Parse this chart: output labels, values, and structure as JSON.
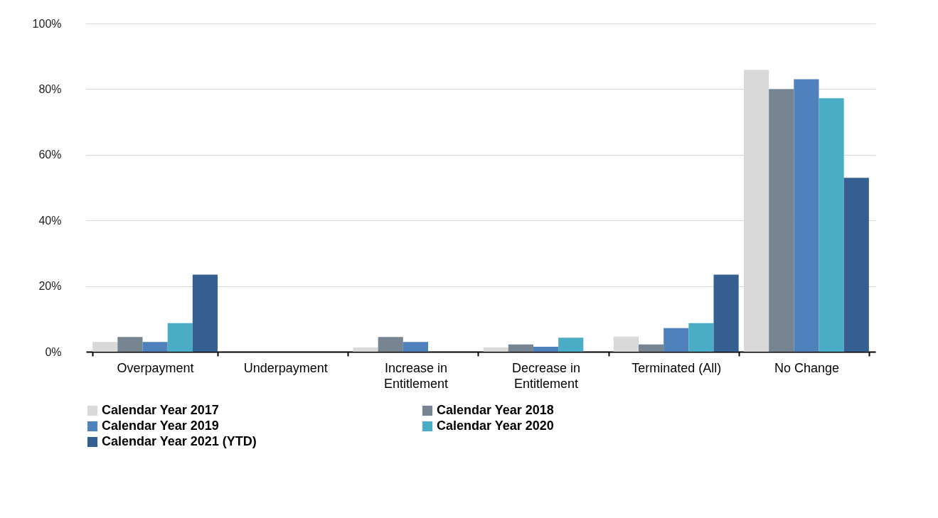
{
  "chart_data": {
    "type": "bar",
    "categories": [
      "Overpayment",
      "Underpayment",
      "Increase in Entitlement",
      "Decrease in Entitlement",
      "Terminated (All)",
      "No Change"
    ],
    "series": [
      {
        "name": "Calendar Year 2017",
        "color": "#d9d9d9",
        "values": [
          3.0,
          0,
          1.3,
          1.3,
          4.6,
          85.9
        ]
      },
      {
        "name": "Calendar Year 2018",
        "color": "#778593",
        "values": [
          4.5,
          0,
          4.5,
          2.2,
          2.2,
          80
        ]
      },
      {
        "name": "Calendar Year 2019",
        "color": "#4f81bd",
        "values": [
          3.0,
          0,
          3.0,
          1.5,
          7.2,
          83
        ]
      },
      {
        "name": "Calendar Year 2020",
        "color": "#4bacc6",
        "values": [
          8.7,
          0,
          0,
          4.3,
          8.7,
          77.2
        ]
      },
      {
        "name": "Calendar Year 2021 (YTD)",
        "color": "#355f91",
        "values": [
          23.5,
          0,
          0,
          0,
          23.5,
          53
        ]
      }
    ],
    "ylim": [
      0,
      100
    ],
    "yticks": [
      {
        "value": 0,
        "label": "0%"
      },
      {
        "value": 20,
        "label": "20%"
      },
      {
        "value": 40,
        "label": "40%"
      },
      {
        "value": 60,
        "label": "60%"
      },
      {
        "value": 80,
        "label": "80%"
      },
      {
        "value": 100,
        "label": "100%"
      }
    ],
    "grid": "y",
    "legend": "bottom"
  }
}
